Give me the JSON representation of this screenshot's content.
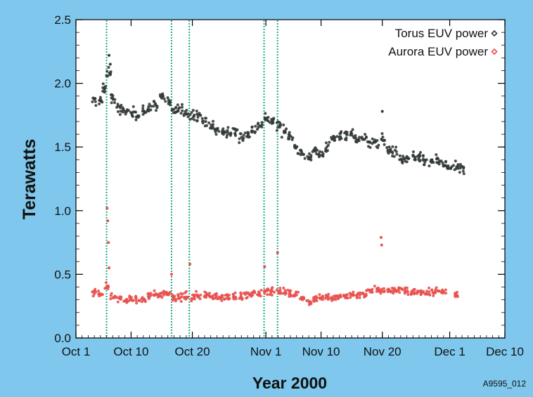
{
  "chart_data": {
    "type": "scatter",
    "xlabel": "Year 2000",
    "ylabel": "Terawatts",
    "x_domain_days": [
      0,
      70
    ],
    "ylim": [
      0.0,
      2.5
    ],
    "x_ticks": [
      {
        "label": "Oct 1",
        "day": 0
      },
      {
        "label": "Oct 10",
        "day": 9
      },
      {
        "label": "Oct 20",
        "day": 19
      },
      {
        "label": "Nov 1",
        "day": 31
      },
      {
        "label": "Nov 10",
        "day": 40
      },
      {
        "label": "Nov 20",
        "day": 50
      },
      {
        "label": "Dec 1",
        "day": 61
      },
      {
        "label": "Dec 10",
        "day": 70
      }
    ],
    "y_ticks": [
      "0.0",
      "0.5",
      "1.0",
      "1.5",
      "2.0",
      "2.5"
    ],
    "grid": false,
    "legend_position": "top-right",
    "event_lines_day": [
      5.0,
      15.6,
      18.5,
      30.7,
      32.9
    ],
    "series": [
      {
        "name": "Torus EUV power",
        "color": "#333a3a",
        "marker": "diamond",
        "points": [
          [
            3.0,
            1.86
          ],
          [
            4.0,
            1.87
          ],
          [
            4.6,
            1.95
          ],
          [
            5.3,
            2.09
          ],
          [
            6.0,
            1.88
          ],
          [
            7.0,
            1.8
          ],
          [
            8.0,
            1.78
          ],
          [
            9.0,
            1.77
          ],
          [
            10.0,
            1.76
          ],
          [
            11.0,
            1.78
          ],
          [
            12.0,
            1.8
          ],
          [
            13.0,
            1.83
          ],
          [
            14.0,
            1.9
          ],
          [
            15.0,
            1.84
          ],
          [
            16.0,
            1.79
          ],
          [
            17.0,
            1.8
          ],
          [
            18.0,
            1.77
          ],
          [
            19.0,
            1.76
          ],
          [
            20.0,
            1.74
          ],
          [
            21.0,
            1.71
          ],
          [
            22.0,
            1.66
          ],
          [
            23.0,
            1.63
          ],
          [
            24.0,
            1.62
          ],
          [
            25.0,
            1.61
          ],
          [
            26.0,
            1.62
          ],
          [
            27.0,
            1.58
          ],
          [
            28.0,
            1.6
          ],
          [
            29.0,
            1.64
          ],
          [
            30.0,
            1.67
          ],
          [
            31.0,
            1.73
          ],
          [
            32.0,
            1.7
          ],
          [
            33.0,
            1.67
          ],
          [
            34.0,
            1.62
          ],
          [
            35.0,
            1.58
          ],
          [
            36.0,
            1.5
          ],
          [
            37.0,
            1.44
          ],
          [
            38.0,
            1.43
          ],
          [
            39.0,
            1.47
          ],
          [
            40.0,
            1.44
          ],
          [
            41.0,
            1.5
          ],
          [
            42.0,
            1.56
          ],
          [
            43.0,
            1.59
          ],
          [
            44.0,
            1.6
          ],
          [
            45.0,
            1.6
          ],
          [
            46.0,
            1.57
          ],
          [
            47.0,
            1.56
          ],
          [
            48.0,
            1.53
          ],
          [
            49.0,
            1.53
          ],
          [
            50.0,
            1.56
          ],
          [
            51.0,
            1.48
          ],
          [
            52.0,
            1.46
          ],
          [
            53.0,
            1.4
          ],
          [
            54.0,
            1.4
          ],
          [
            55.0,
            1.42
          ],
          [
            56.0,
            1.41
          ],
          [
            57.0,
            1.39
          ],
          [
            58.0,
            1.38
          ],
          [
            59.0,
            1.39
          ],
          [
            60.0,
            1.36
          ],
          [
            61.0,
            1.34
          ],
          [
            62.0,
            1.34
          ],
          [
            63.0,
            1.32
          ]
        ],
        "outliers": [
          [
            5.4,
            2.22
          ],
          [
            5.6,
            2.15
          ],
          [
            50.0,
            1.78
          ]
        ]
      },
      {
        "name": "Aurora EUV power",
        "color": "#e8514f",
        "marker": "diamond",
        "points": [
          [
            3.0,
            0.36
          ],
          [
            4.0,
            0.35
          ],
          [
            5.0,
            0.4
          ],
          [
            6.0,
            0.33
          ],
          [
            7.0,
            0.31
          ],
          [
            8.0,
            0.3
          ],
          [
            9.0,
            0.31
          ],
          [
            10.0,
            0.3
          ],
          [
            11.0,
            0.31
          ],
          [
            12.0,
            0.33
          ],
          [
            13.0,
            0.34
          ],
          [
            14.0,
            0.34
          ],
          [
            15.0,
            0.35
          ],
          [
            16.0,
            0.31
          ],
          [
            17.0,
            0.32
          ],
          [
            18.0,
            0.33
          ],
          [
            19.0,
            0.32
          ],
          [
            20.0,
            0.33
          ],
          [
            21.0,
            0.34
          ],
          [
            22.0,
            0.32
          ],
          [
            23.0,
            0.33
          ],
          [
            24.0,
            0.32
          ],
          [
            25.0,
            0.32
          ],
          [
            26.0,
            0.33
          ],
          [
            27.0,
            0.33
          ],
          [
            28.0,
            0.34
          ],
          [
            29.0,
            0.34
          ],
          [
            30.0,
            0.35
          ],
          [
            31.0,
            0.37
          ],
          [
            32.0,
            0.37
          ],
          [
            33.0,
            0.37
          ],
          [
            34.0,
            0.36
          ],
          [
            35.0,
            0.35
          ],
          [
            36.0,
            0.35
          ],
          [
            37.0,
            0.31
          ],
          [
            38.0,
            0.29
          ],
          [
            39.0,
            0.31
          ],
          [
            40.0,
            0.32
          ],
          [
            41.0,
            0.32
          ],
          [
            42.0,
            0.31
          ],
          [
            43.0,
            0.32
          ],
          [
            44.0,
            0.33
          ],
          [
            45.0,
            0.34
          ],
          [
            46.0,
            0.34
          ],
          [
            47.0,
            0.35
          ],
          [
            48.0,
            0.37
          ],
          [
            49.0,
            0.38
          ],
          [
            50.0,
            0.37
          ],
          [
            51.0,
            0.38
          ],
          [
            52.0,
            0.37
          ],
          [
            53.0,
            0.38
          ],
          [
            54.0,
            0.37
          ],
          [
            55.0,
            0.36
          ],
          [
            56.0,
            0.36
          ],
          [
            57.0,
            0.35
          ],
          [
            58.0,
            0.36
          ],
          [
            59.0,
            0.37
          ],
          [
            60.0,
            0.36
          ],
          [
            62.0,
            0.34
          ]
        ],
        "outliers": [
          [
            5.1,
            1.02
          ],
          [
            5.2,
            0.92
          ],
          [
            5.3,
            0.75
          ],
          [
            5.4,
            0.55
          ],
          [
            15.6,
            0.5
          ],
          [
            18.6,
            0.58
          ],
          [
            30.8,
            0.56
          ],
          [
            32.9,
            0.67
          ],
          [
            49.8,
            0.79
          ],
          [
            49.9,
            0.73
          ]
        ]
      }
    ]
  },
  "footer": {
    "code": "A9595_012"
  }
}
